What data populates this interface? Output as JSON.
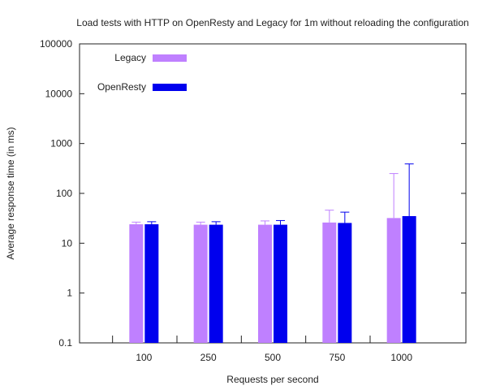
{
  "chart_data": {
    "type": "bar",
    "title": "Load tests with HTTP on OpenResty and Legacy for 1m without reloading the configuration",
    "xlabel": "Requests per second",
    "ylabel": "Average response time (in ms)",
    "yscale": "log",
    "ylim": [
      0.1,
      100000
    ],
    "yticks": [
      "0.1",
      "1",
      "10",
      "100",
      "1000",
      "10000",
      "100000"
    ],
    "categories": [
      "100",
      "250",
      "500",
      "750",
      "1000"
    ],
    "legend_position": "top-left",
    "grid": false,
    "series": [
      {
        "name": "Legacy",
        "color": "#bf80ff",
        "values": [
          24,
          23.5,
          23.5,
          26,
          32
        ],
        "error_high": [
          26.5,
          26.5,
          28,
          46,
          250
        ]
      },
      {
        "name": "OpenResty",
        "color": "#0000ee",
        "values": [
          24,
          23.5,
          23.5,
          25.5,
          35
        ],
        "error_high": [
          27,
          27,
          28.5,
          42,
          390
        ]
      }
    ]
  }
}
